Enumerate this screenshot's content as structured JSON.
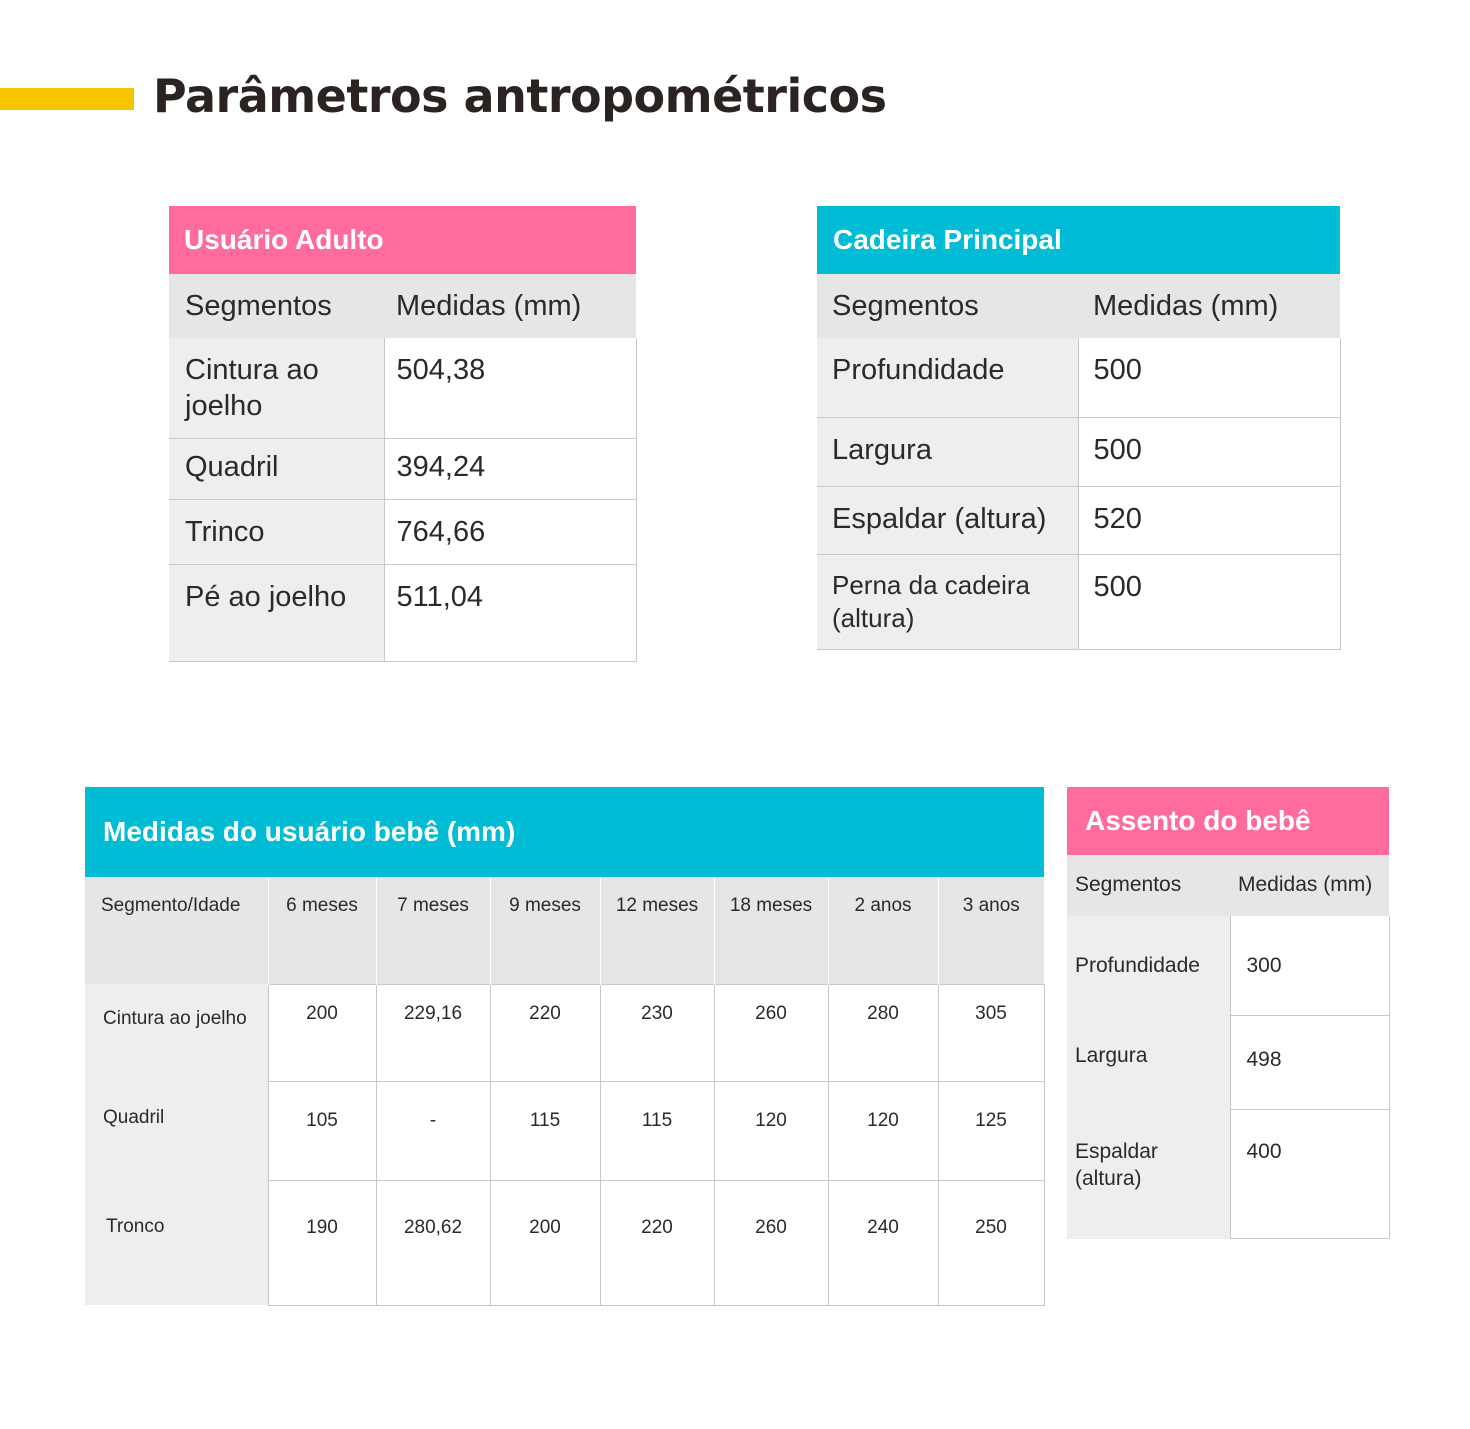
{
  "page": {
    "title": "Parâmetros antropométricos"
  },
  "colors": {
    "accent_yellow": "#f7c500",
    "pink_header": "#ff6b9c",
    "cyan_header": "#00bcd4",
    "column_header_bg": "#e6e6e6",
    "label_cell_bg": "#eeeeee"
  },
  "adult": {
    "title": "Usuário Adulto",
    "headers": [
      "Segmentos",
      "Medidas (mm)"
    ],
    "rows": [
      {
        "segment": "Cintura ao joelho",
        "value": "504,38"
      },
      {
        "segment": "Quadril",
        "value": "394,24"
      },
      {
        "segment": "Trinco",
        "value": "764,66"
      },
      {
        "segment": "Pé ao joelho",
        "value": "511,04"
      }
    ]
  },
  "chair": {
    "title": "Cadeira Principal",
    "headers": [
      "Segmentos",
      "Medidas (mm)"
    ],
    "rows": [
      {
        "segment": "Profundidade",
        "value": "500"
      },
      {
        "segment": "Largura",
        "value": "500"
      },
      {
        "segment": "Espaldar (altura)",
        "value": "520"
      },
      {
        "segment": "Perna da cadeira (altura)",
        "value": "500"
      }
    ]
  },
  "baby": {
    "title": "Medidas do usuário bebê (mm)",
    "headers": [
      "Segmento/Idade",
      "6 meses",
      "7 meses",
      "9 meses",
      "12 meses",
      "18 meses",
      "2 anos",
      "3 anos"
    ],
    "rows": [
      {
        "segment": "Cintura ao joelho",
        "values": [
          "200",
          "229,16",
          "220",
          "230",
          "260",
          "280",
          "305"
        ]
      },
      {
        "segment": "Quadril",
        "values": [
          "105",
          "-",
          "115",
          "115",
          "120",
          "120",
          "125"
        ]
      },
      {
        "segment": "Tronco",
        "values": [
          "190",
          "280,62",
          "200",
          "220",
          "260",
          "240",
          "250"
        ]
      }
    ]
  },
  "seat": {
    "title": "Assento do bebê",
    "headers": [
      "Segmentos",
      "Medidas (mm)"
    ],
    "rows": [
      {
        "segment": "Profundidade",
        "value": "300"
      },
      {
        "segment": "Largura",
        "value": "498"
      },
      {
        "segment": "Espaldar (altura)",
        "value": "400"
      }
    ]
  }
}
